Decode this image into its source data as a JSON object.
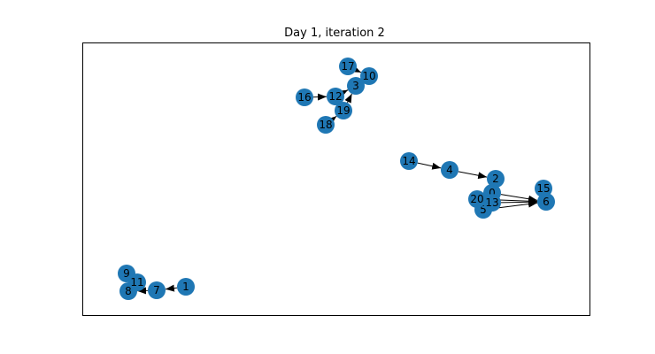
{
  "figure": {
    "title": "Day 1, iteration 2"
  },
  "graph": {
    "node_color": "#1f77b4",
    "edge_color": "#000000",
    "nodes": [
      {
        "id": "0",
        "label": "0"
      },
      {
        "id": "1",
        "label": "1"
      },
      {
        "id": "2",
        "label": "2"
      },
      {
        "id": "3",
        "label": "3"
      },
      {
        "id": "4",
        "label": "4"
      },
      {
        "id": "5",
        "label": "5"
      },
      {
        "id": "6",
        "label": "6"
      },
      {
        "id": "7",
        "label": "7"
      },
      {
        "id": "8",
        "label": "8"
      },
      {
        "id": "9",
        "label": "9"
      },
      {
        "id": "10",
        "label": "10"
      },
      {
        "id": "11",
        "label": "11"
      },
      {
        "id": "12",
        "label": "12"
      },
      {
        "id": "13",
        "label": "13"
      },
      {
        "id": "14",
        "label": "14"
      },
      {
        "id": "15",
        "label": "15"
      },
      {
        "id": "16",
        "label": "16"
      },
      {
        "id": "17",
        "label": "17"
      },
      {
        "id": "18",
        "label": "18"
      },
      {
        "id": "19",
        "label": "19"
      },
      {
        "id": "20",
        "label": "20"
      }
    ],
    "edges": [
      {
        "source": "14",
        "target": "4"
      },
      {
        "source": "4",
        "target": "2"
      },
      {
        "source": "0",
        "target": "6"
      },
      {
        "source": "20",
        "target": "6"
      },
      {
        "source": "13",
        "target": "6"
      },
      {
        "source": "5",
        "target": "6"
      },
      {
        "source": "16",
        "target": "12"
      },
      {
        "source": "12",
        "target": "3"
      },
      {
        "source": "19",
        "target": "3"
      },
      {
        "source": "18",
        "target": "19"
      },
      {
        "source": "17",
        "target": "10"
      },
      {
        "source": "1",
        "target": "7"
      },
      {
        "source": "7",
        "target": "8"
      }
    ]
  }
}
